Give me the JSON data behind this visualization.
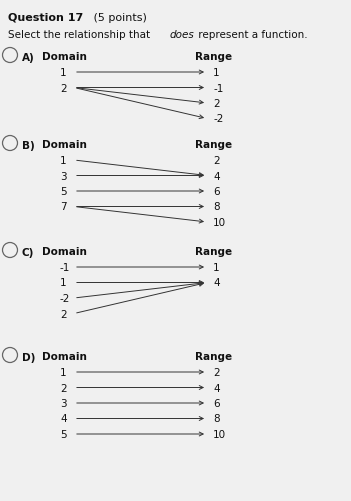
{
  "title_bold": "Question 17",
  "title_normal": " (5 points)",
  "subtitle_pre": "Select the relationship that ",
  "subtitle_italic": "does",
  "subtitle_post": " represent a function.",
  "background_color": "#f0f0f0",
  "text_color": "#111111",
  "fig_width": 3.51,
  "fig_height": 5.02,
  "options": [
    {
      "label": "A)",
      "domain_values": [
        "1",
        "2"
      ],
      "range_values": [
        "1",
        "-1",
        "2",
        "-2"
      ],
      "arrows": [
        [
          0,
          0
        ],
        [
          1,
          1
        ],
        [
          1,
          2
        ],
        [
          1,
          3
        ]
      ]
    },
    {
      "label": "B)",
      "domain_values": [
        "1",
        "3",
        "5",
        "7"
      ],
      "range_values": [
        "2",
        "4",
        "6",
        "8",
        "10"
      ],
      "arrows": [
        [
          0,
          1
        ],
        [
          1,
          1
        ],
        [
          2,
          2
        ],
        [
          3,
          3
        ],
        [
          3,
          4
        ]
      ]
    },
    {
      "label": "C)",
      "domain_values": [
        "-1",
        "1",
        "-2",
        "2"
      ],
      "range_values": [
        "1",
        "4"
      ],
      "arrows": [
        [
          0,
          0
        ],
        [
          1,
          1
        ],
        [
          2,
          1
        ],
        [
          3,
          1
        ]
      ]
    },
    {
      "label": "D)",
      "domain_values": [
        "1",
        "2",
        "3",
        "4",
        "5"
      ],
      "range_values": [
        "2",
        "4",
        "6",
        "8",
        "10"
      ],
      "arrows": [
        [
          0,
          0
        ],
        [
          1,
          1
        ],
        [
          2,
          2
        ],
        [
          3,
          3
        ],
        [
          4,
          4
        ]
      ]
    }
  ]
}
